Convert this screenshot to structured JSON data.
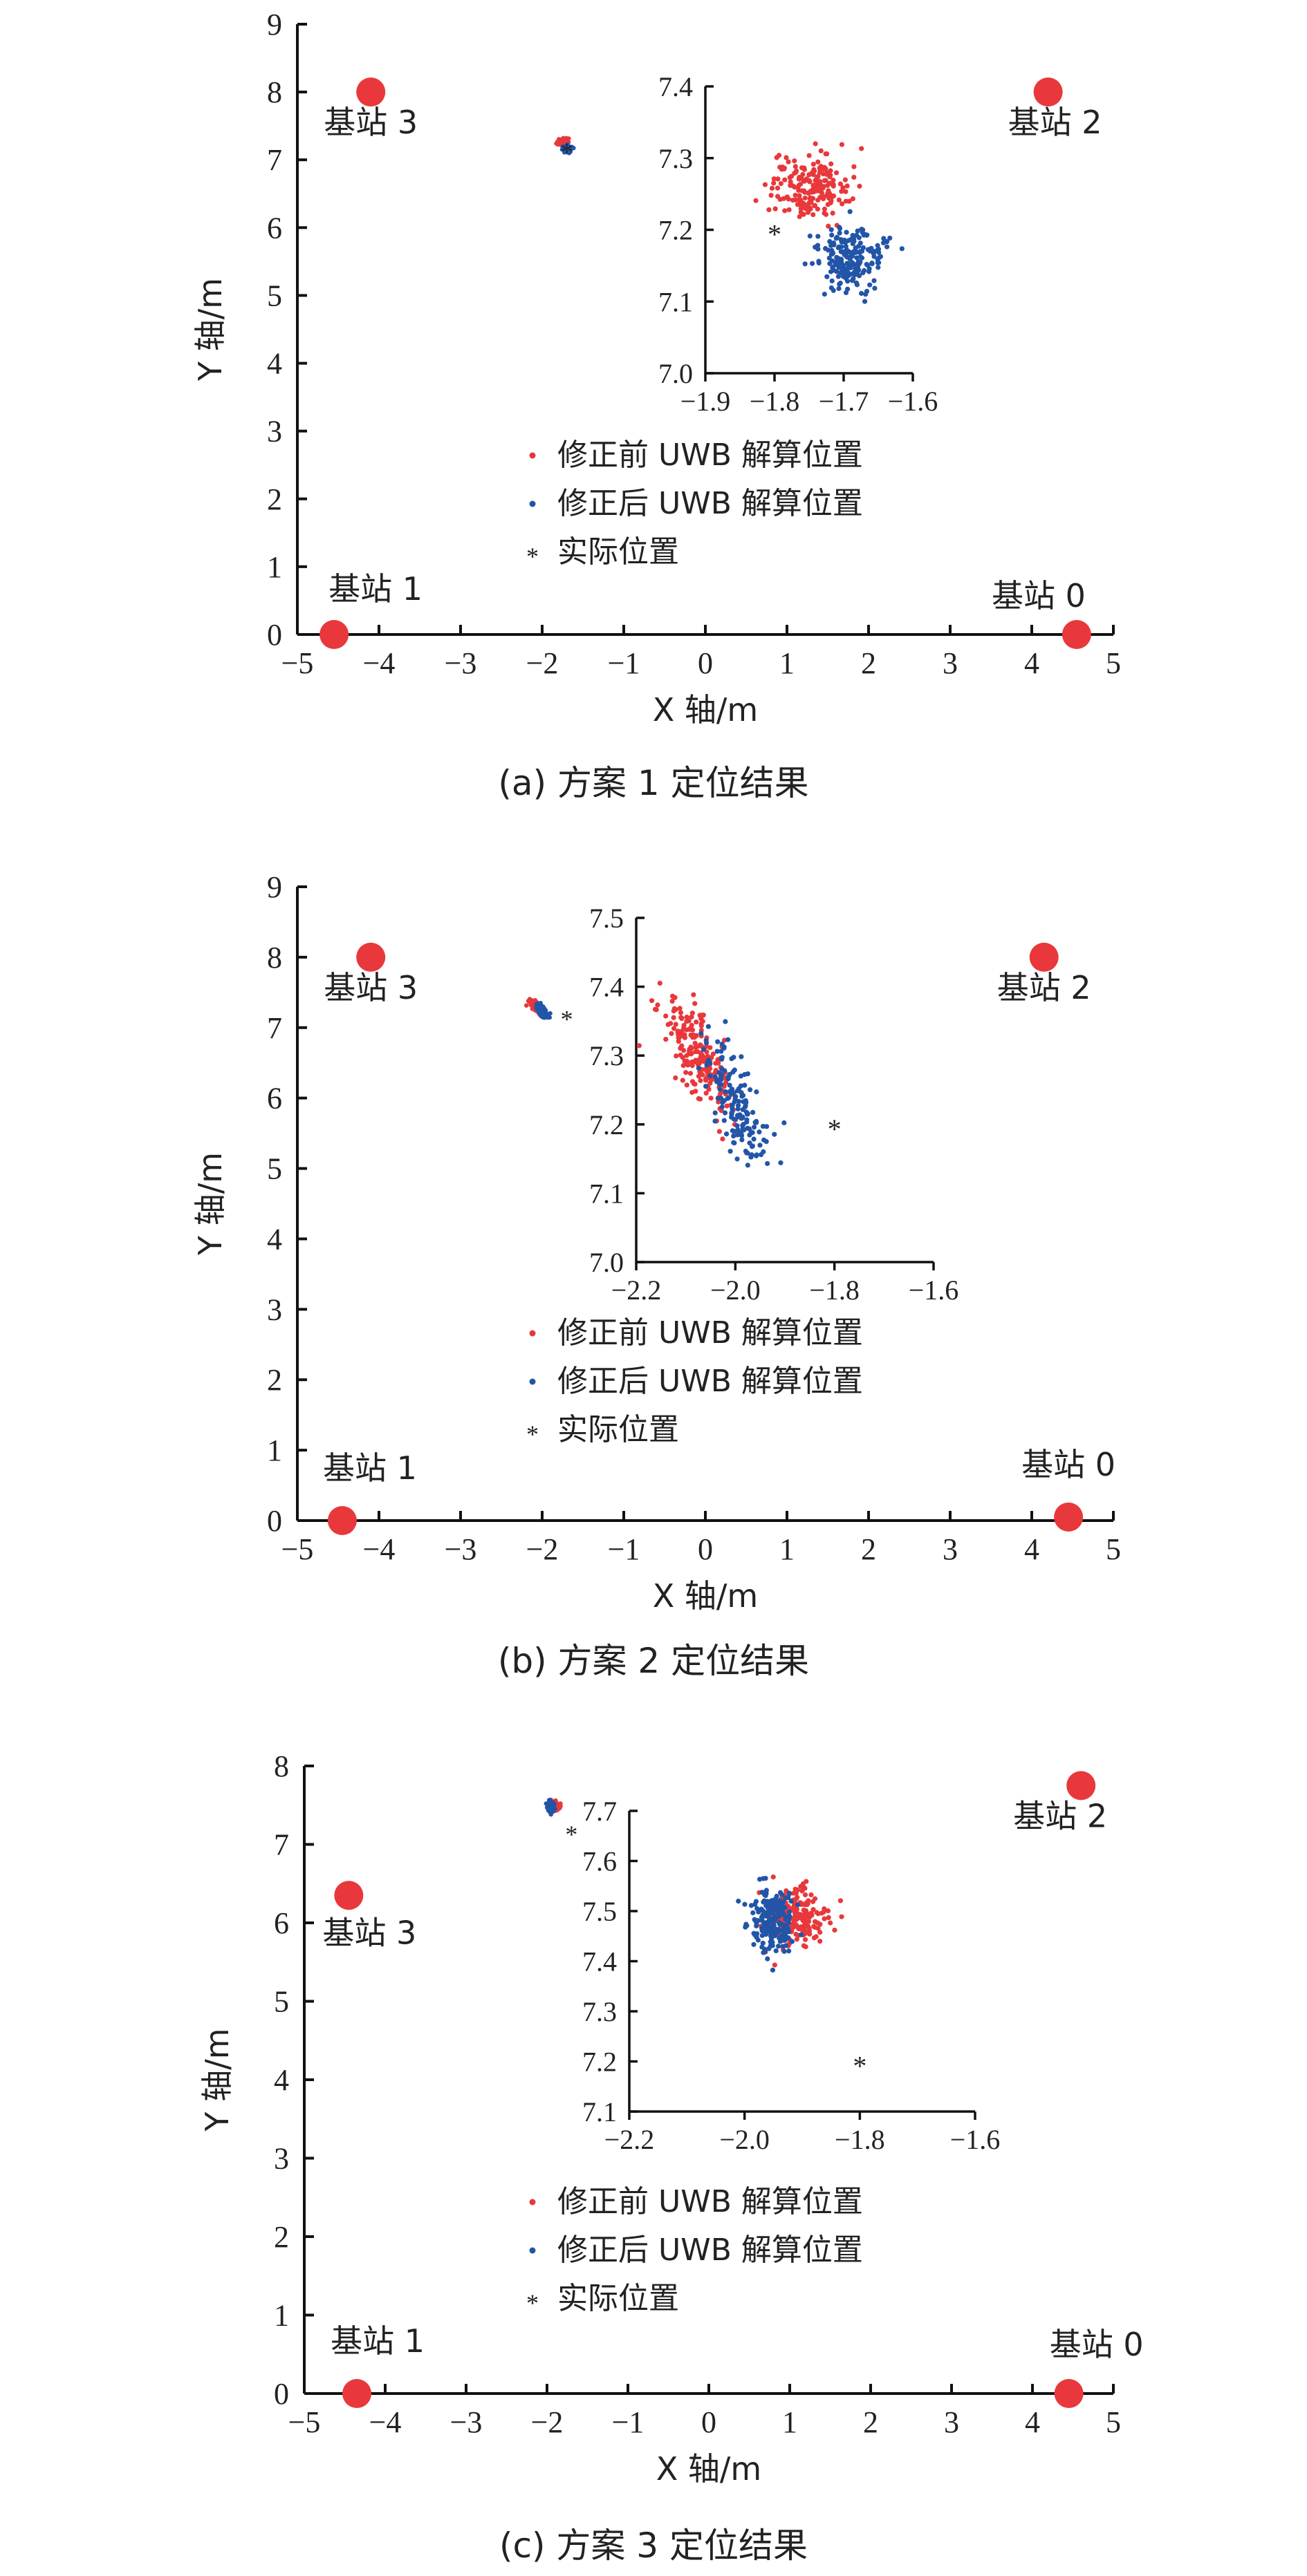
{
  "colors": {
    "before": "#e8383b",
    "after": "#2255a8",
    "actual": "#222222",
    "station": "#e8383b"
  },
  "chart_data": [
    {
      "type": "scatter",
      "caption": "(a) 方案 1 定位结果",
      "xlabel": "X 轴/m",
      "ylabel": "Y 轴/m",
      "xlim": [
        -5,
        5
      ],
      "ylim": [
        0,
        9
      ],
      "xticks": [
        "−5",
        "−4",
        "−3",
        "−2",
        "−1",
        "0",
        "1",
        "2",
        "3",
        "4",
        "5"
      ],
      "yticks": [
        "0",
        "1",
        "2",
        "3",
        "4",
        "5",
        "6",
        "7",
        "8",
        "9"
      ],
      "stations": [
        {
          "label": "基站 0",
          "x": 4.55,
          "y": 0.0
        },
        {
          "label": "基站 1",
          "x": -4.55,
          "y": 0.0
        },
        {
          "label": "基站 2",
          "x": 4.2,
          "y": 8.0
        },
        {
          "label": "基站 3",
          "x": -4.1,
          "y": 8.0
        }
      ],
      "series": [
        {
          "name": "修正前 UWB 解算位置",
          "center": [
            -1.75,
            7.26
          ],
          "spread": [
            0.028,
            0.022
          ],
          "count": 200,
          "rho": 0.0
        },
        {
          "name": "修正后 UWB 解算位置",
          "center": [
            -1.69,
            7.16
          ],
          "spread": [
            0.024,
            0.022
          ],
          "count": 200,
          "rho": 0.0
        }
      ],
      "actual": {
        "name": "实际位置",
        "x": -1.8,
        "y": 7.2
      },
      "inset": {
        "xlim": [
          -1.9,
          -1.6
        ],
        "ylim": [
          7.0,
          7.4
        ],
        "xticks": [
          "−1.9",
          "−1.8",
          "−1.7",
          "−1.6"
        ],
        "yticks": [
          "7.0",
          "7.1",
          "7.2",
          "7.3",
          "7.4"
        ]
      }
    },
    {
      "type": "scatter",
      "caption": "(b) 方案 2 定位结果",
      "xlabel": "X 轴/m",
      "ylabel": "Y 轴/m",
      "xlim": [
        -5,
        5
      ],
      "ylim": [
        0,
        9
      ],
      "xticks": [
        "−5",
        "−4",
        "−3",
        "−2",
        "−1",
        "0",
        "1",
        "2",
        "3",
        "4",
        "5"
      ],
      "yticks": [
        "0",
        "1",
        "2",
        "3",
        "4",
        "5",
        "6",
        "7",
        "8",
        "9"
      ],
      "stations": [
        {
          "label": "基站 0",
          "x": 4.45,
          "y": 0.05
        },
        {
          "label": "基站 1",
          "x": -4.45,
          "y": 0.0
        },
        {
          "label": "基站 2",
          "x": 4.15,
          "y": 8.0
        },
        {
          "label": "基站 3",
          "x": -4.1,
          "y": 8.0
        }
      ],
      "series": [
        {
          "name": "修正前 UWB 解算位置",
          "center": [
            -2.08,
            7.3
          ],
          "spread": [
            0.035,
            0.04
          ],
          "count": 200,
          "rho": -0.7
        },
        {
          "name": "修正后 UWB 解算位置",
          "center": [
            -2.0,
            7.23
          ],
          "spread": [
            0.03,
            0.045
          ],
          "count": 160,
          "rho": -0.75
        }
      ],
      "actual": {
        "name": "实际位置",
        "x": -1.8,
        "y": 7.2
      },
      "inset": {
        "xlim": [
          -2.2,
          -1.6
        ],
        "ylim": [
          7.0,
          7.5
        ],
        "xticks": [
          "−2.2",
          "−2.0",
          "−1.8",
          "−1.6"
        ],
        "yticks": [
          "7.0",
          "7.1",
          "7.2",
          "7.3",
          "7.4",
          "7.5"
        ]
      }
    },
    {
      "type": "scatter",
      "caption": "(c) 方案 3 定位结果",
      "xlabel": "X 轴/m",
      "ylabel": "Y 轴/m",
      "xlim": [
        -5,
        5
      ],
      "ylim": [
        0,
        8
      ],
      "xticks": [
        "−5",
        "−4",
        "−3",
        "−2",
        "−1",
        "0",
        "1",
        "2",
        "3",
        "4",
        "5"
      ],
      "yticks": [
        "0",
        "1",
        "2",
        "3",
        "4",
        "5",
        "6",
        "7",
        "8"
      ],
      "stations": [
        {
          "label": "基站 0",
          "x": 4.45,
          "y": 0.0
        },
        {
          "label": "基站 1",
          "x": -4.35,
          "y": 0.0
        },
        {
          "label": "基站 2",
          "x": 4.6,
          "y": 7.75
        },
        {
          "label": "基站 3",
          "x": -4.45,
          "y": 6.35
        }
      ],
      "series": [
        {
          "name": "修正前 UWB 解算位置",
          "center": [
            -1.91,
            7.49
          ],
          "spread": [
            0.025,
            0.028
          ],
          "count": 200,
          "rho": 0.0
        },
        {
          "name": "修正后 UWB 解算位置",
          "center": [
            -1.95,
            7.48
          ],
          "spread": [
            0.02,
            0.03
          ],
          "count": 200,
          "rho": 0.0
        }
      ],
      "actual": {
        "name": "实际位置",
        "x": -1.8,
        "y": 7.2
      },
      "inset": {
        "xlim": [
          -2.2,
          -1.6
        ],
        "ylim": [
          7.1,
          7.7
        ],
        "xticks": [
          "−2.2",
          "−2.0",
          "−1.8",
          "−1.6"
        ],
        "yticks": [
          "7.1",
          "7.2",
          "7.3",
          "7.4",
          "7.5",
          "7.6",
          "7.7"
        ]
      }
    }
  ]
}
